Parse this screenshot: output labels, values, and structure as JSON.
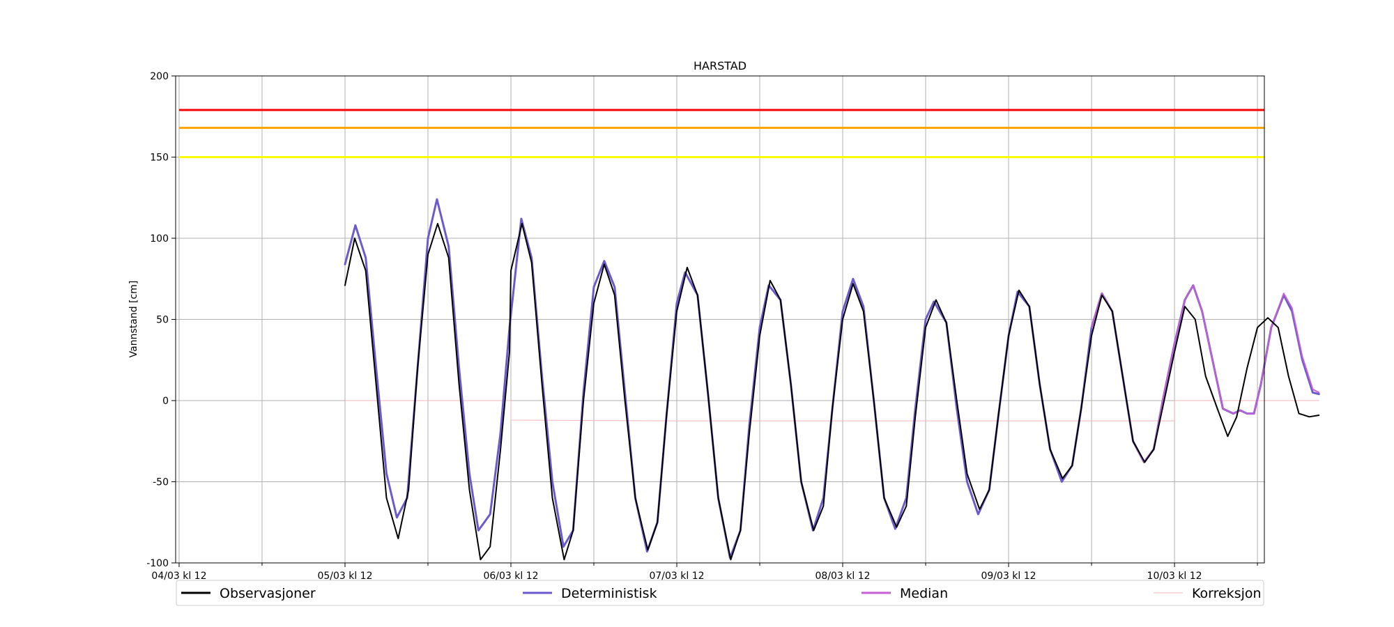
{
  "chart_data": {
    "type": "line",
    "title": "HARSTAD",
    "ylabel": "Vannstand [cm]",
    "xlabel": "",
    "x_unit": "hours after 04/03 kl 12",
    "xlim": [
      -0.5,
      157
    ],
    "ylim": [
      -100,
      200
    ],
    "yticks": [
      -100,
      -50,
      0,
      50,
      100,
      150,
      200
    ],
    "xticks": [
      0,
      24,
      48,
      72,
      96,
      120,
      144
    ],
    "xtick_labels": [
      "04/03 kl 12",
      "05/03 kl 12",
      "06/03 kl 12",
      "07/03 kl 12",
      "08/03 kl 12",
      "09/03 kl 12",
      "10/03 kl 12"
    ],
    "xgrid_minor": [
      12,
      36,
      60,
      84,
      108,
      132,
      156
    ],
    "grid": true,
    "legend_position": "bottom",
    "thresholds": [
      {
        "value": 179,
        "color": "#ff0000"
      },
      {
        "value": 168,
        "color": "#ffa500"
      },
      {
        "value": 150,
        "color": "#ffff00"
      }
    ],
    "series": [
      {
        "name": "Observasjoner",
        "color": "#000000",
        "width": 2,
        "points": [
          [
            24,
            71
          ],
          [
            25.4,
            100
          ],
          [
            27,
            80
          ],
          [
            28.5,
            10
          ],
          [
            30,
            -60
          ],
          [
            31.7,
            -85
          ],
          [
            33.2,
            -55
          ],
          [
            34.5,
            20
          ],
          [
            36,
            90
          ],
          [
            37.4,
            109
          ],
          [
            39,
            88
          ],
          [
            40.5,
            10
          ],
          [
            42,
            -55
          ],
          [
            43.6,
            -98
          ],
          [
            45,
            -90
          ],
          [
            46.5,
            -30
          ],
          [
            47.8,
            30
          ],
          [
            48,
            80
          ],
          [
            49.6,
            109
          ],
          [
            51,
            85
          ],
          [
            52.5,
            10
          ],
          [
            54,
            -60
          ],
          [
            55.7,
            -98
          ],
          [
            57,
            -80
          ],
          [
            58.5,
            0
          ],
          [
            60,
            60
          ],
          [
            61.5,
            84
          ],
          [
            63,
            65
          ],
          [
            64.5,
            0
          ],
          [
            66,
            -60
          ],
          [
            67.8,
            -92
          ],
          [
            69.2,
            -75
          ],
          [
            70.5,
            -10
          ],
          [
            72,
            55
          ],
          [
            73.5,
            82
          ],
          [
            75,
            65
          ],
          [
            76.5,
            5
          ],
          [
            78,
            -60
          ],
          [
            79.8,
            -98
          ],
          [
            81.2,
            -80
          ],
          [
            82.5,
            -20
          ],
          [
            84,
            40
          ],
          [
            85.5,
            74
          ],
          [
            87,
            62
          ],
          [
            88.5,
            10
          ],
          [
            90,
            -50
          ],
          [
            91.8,
            -80
          ],
          [
            93.2,
            -65
          ],
          [
            94.5,
            -5
          ],
          [
            96,
            50
          ],
          [
            97.5,
            72
          ],
          [
            99,
            55
          ],
          [
            100.5,
            0
          ],
          [
            102,
            -60
          ],
          [
            103.8,
            -78
          ],
          [
            105.2,
            -65
          ],
          [
            106.5,
            -10
          ],
          [
            108,
            45
          ],
          [
            109.5,
            62
          ],
          [
            111,
            48
          ],
          [
            112.5,
            0
          ],
          [
            114,
            -45
          ],
          [
            115.8,
            -67
          ],
          [
            117.2,
            -55
          ],
          [
            118.5,
            -10
          ],
          [
            120,
            40
          ],
          [
            121.5,
            68
          ],
          [
            123,
            58
          ],
          [
            124.5,
            10
          ],
          [
            126,
            -30
          ],
          [
            127.8,
            -48
          ],
          [
            129.2,
            -40
          ],
          [
            130.5,
            -5
          ],
          [
            132,
            40
          ],
          [
            133.5,
            65
          ],
          [
            135,
            55
          ],
          [
            136.5,
            15
          ],
          [
            138,
            -25
          ],
          [
            139.7,
            -38
          ],
          [
            141,
            -30
          ],
          [
            142.5,
            0
          ],
          [
            144,
            30
          ],
          [
            145.5,
            58
          ],
          [
            147,
            50
          ],
          [
            148.5,
            15
          ],
          [
            150.2,
            -5
          ],
          [
            151.7,
            -22
          ],
          [
            153,
            -10
          ],
          [
            154.5,
            20
          ],
          [
            156,
            45
          ],
          [
            157.5,
            51
          ],
          [
            159,
            45
          ],
          [
            160.5,
            15
          ],
          [
            162,
            -8
          ],
          [
            163.5,
            -10
          ],
          [
            164.9,
            -9
          ]
        ]
      },
      {
        "name": "Deterministisk",
        "color": "#6a5acd",
        "width": 3,
        "points": [
          [
            24,
            84
          ],
          [
            25.5,
            108
          ],
          [
            27,
            88
          ],
          [
            28.5,
            20
          ],
          [
            30,
            -45
          ],
          [
            31.5,
            -72
          ],
          [
            33,
            -60
          ],
          [
            34.5,
            20
          ],
          [
            36,
            100
          ],
          [
            37.3,
            124
          ],
          [
            39,
            95
          ],
          [
            40.5,
            20
          ],
          [
            42,
            -45
          ],
          [
            43.3,
            -80
          ],
          [
            45,
            -70
          ],
          [
            46.5,
            -20
          ],
          [
            47.8,
            45
          ],
          [
            49.5,
            112
          ],
          [
            51,
            88
          ],
          [
            52.5,
            15
          ],
          [
            54,
            -50
          ],
          [
            55.6,
            -90
          ],
          [
            57,
            -80
          ],
          [
            58.5,
            5
          ],
          [
            60,
            70
          ],
          [
            61.5,
            86
          ],
          [
            63,
            70
          ],
          [
            64.5,
            5
          ],
          [
            66,
            -60
          ],
          [
            67.7,
            -93
          ],
          [
            69.2,
            -75
          ],
          [
            70.5,
            -10
          ],
          [
            72,
            60
          ],
          [
            73.2,
            79
          ],
          [
            75,
            65
          ],
          [
            76.5,
            5
          ],
          [
            78,
            -60
          ],
          [
            79.7,
            -97
          ],
          [
            81.2,
            -80
          ],
          [
            82.5,
            -15
          ],
          [
            84,
            45
          ],
          [
            85.3,
            71
          ],
          [
            87,
            62
          ],
          [
            88.5,
            10
          ],
          [
            90,
            -50
          ],
          [
            91.7,
            -80
          ],
          [
            93.2,
            -60
          ],
          [
            94.5,
            -5
          ],
          [
            96,
            55
          ],
          [
            97.5,
            75
          ],
          [
            99,
            58
          ],
          [
            100.5,
            0
          ],
          [
            102,
            -60
          ],
          [
            103.6,
            -79
          ],
          [
            105.2,
            -60
          ],
          [
            106.5,
            -5
          ],
          [
            108,
            50
          ],
          [
            109.2,
            61
          ],
          [
            111,
            48
          ],
          [
            112.5,
            -5
          ],
          [
            114,
            -50
          ],
          [
            115.6,
            -70
          ],
          [
            117.2,
            -55
          ],
          [
            118.5,
            -10
          ],
          [
            120,
            40
          ],
          [
            121.3,
            67
          ],
          [
            123,
            58
          ],
          [
            124.5,
            10
          ],
          [
            126,
            -30
          ],
          [
            127.7,
            -50
          ],
          [
            129.2,
            -40
          ],
          [
            130.5,
            -5
          ],
          [
            132,
            45
          ],
          [
            133.5,
            66
          ],
          [
            135,
            55
          ],
          [
            136.5,
            15
          ],
          [
            138,
            -25
          ],
          [
            139.6,
            -38
          ],
          [
            141,
            -30
          ],
          [
            142.3,
            0
          ],
          [
            144,
            35
          ],
          [
            145.5,
            62
          ],
          [
            146.7,
            71
          ],
          [
            148,
            55
          ],
          [
            149.5,
            25
          ],
          [
            151,
            -5
          ],
          [
            152.5,
            -8
          ],
          [
            153.5,
            -6
          ],
          [
            154.5,
            -8
          ],
          [
            155.5,
            -8
          ],
          [
            156.5,
            10
          ],
          [
            158,
            45
          ],
          [
            159.8,
            65
          ],
          [
            161,
            55
          ],
          [
            162.5,
            25
          ],
          [
            164,
            5
          ],
          [
            164.9,
            4
          ]
        ]
      },
      {
        "name": "Median",
        "color": "#c45fd6",
        "width": 2,
        "points": [
          [
            132,
            45
          ],
          [
            133.5,
            66
          ],
          [
            135,
            55
          ],
          [
            136.5,
            15
          ],
          [
            138,
            -25
          ],
          [
            139.6,
            -38
          ],
          [
            141,
            -30
          ],
          [
            142.3,
            0
          ],
          [
            144,
            35
          ],
          [
            145.5,
            62
          ],
          [
            146.7,
            71
          ],
          [
            148,
            55
          ],
          [
            149.5,
            25
          ],
          [
            151,
            -5
          ],
          [
            152.5,
            -8
          ],
          [
            153.5,
            -6
          ],
          [
            154.5,
            -8
          ],
          [
            155.5,
            -8
          ],
          [
            156.5,
            10
          ],
          [
            158,
            45
          ],
          [
            159.8,
            66
          ],
          [
            161,
            57
          ],
          [
            162.5,
            27
          ],
          [
            164,
            7
          ],
          [
            164.9,
            5
          ]
        ]
      },
      {
        "name": "Korreksjon",
        "color": "#f4b4b8",
        "width": 1,
        "points": [
          [
            24,
            0
          ],
          [
            48,
            0
          ],
          [
            48,
            -12
          ],
          [
            72,
            -12.5
          ],
          [
            96,
            -12.5
          ],
          [
            120,
            -12.5
          ],
          [
            144,
            -12.5
          ],
          [
            144,
            0
          ],
          [
            164.9,
            0
          ]
        ]
      }
    ]
  }
}
